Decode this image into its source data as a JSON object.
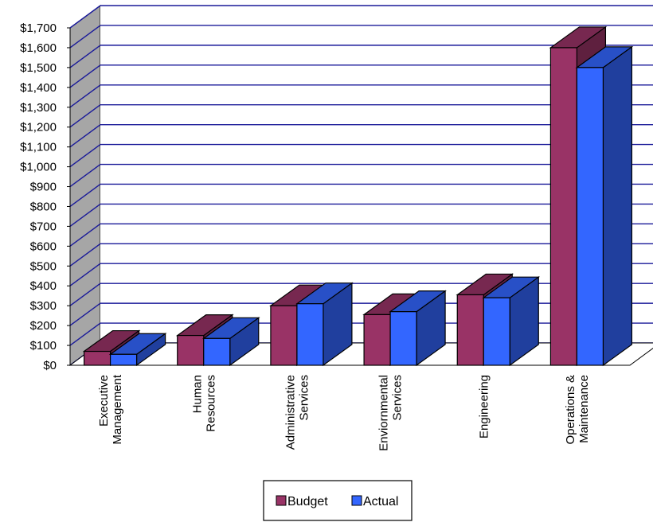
{
  "chart_data": {
    "type": "bar",
    "style": "3d-clustered-column",
    "title": "",
    "xlabel": "",
    "ylabel": "",
    "ylim": [
      0,
      1700
    ],
    "y_ticks": [
      "$0",
      "$100",
      "$200",
      "$300",
      "$400",
      "$500",
      "$600",
      "$700",
      "$800",
      "$900",
      "$1,000",
      "$1,100",
      "$1,200",
      "$1,300",
      "$1,400",
      "$1,500",
      "$1,600",
      "$1,700"
    ],
    "categories": [
      [
        "Executive",
        "Management"
      ],
      [
        "Human",
        "Resources"
      ],
      [
        "Administrative",
        "Services"
      ],
      [
        "Enviornmental",
        "Services"
      ],
      [
        "Engineering"
      ],
      [
        "Operations &",
        "Maintenance"
      ]
    ],
    "series": [
      {
        "name": "Budget",
        "color": "#993366",
        "values": [
          70,
          150,
          300,
          255,
          355,
          1600
        ]
      },
      {
        "name": "Actual",
        "color": "#3366ff",
        "values": [
          55,
          135,
          310,
          270,
          340,
          1500
        ]
      }
    ],
    "grid": true,
    "gridline_color": "#1a1a99",
    "wall_color": "#a6a6a6",
    "legend_position": "bottom-center"
  }
}
